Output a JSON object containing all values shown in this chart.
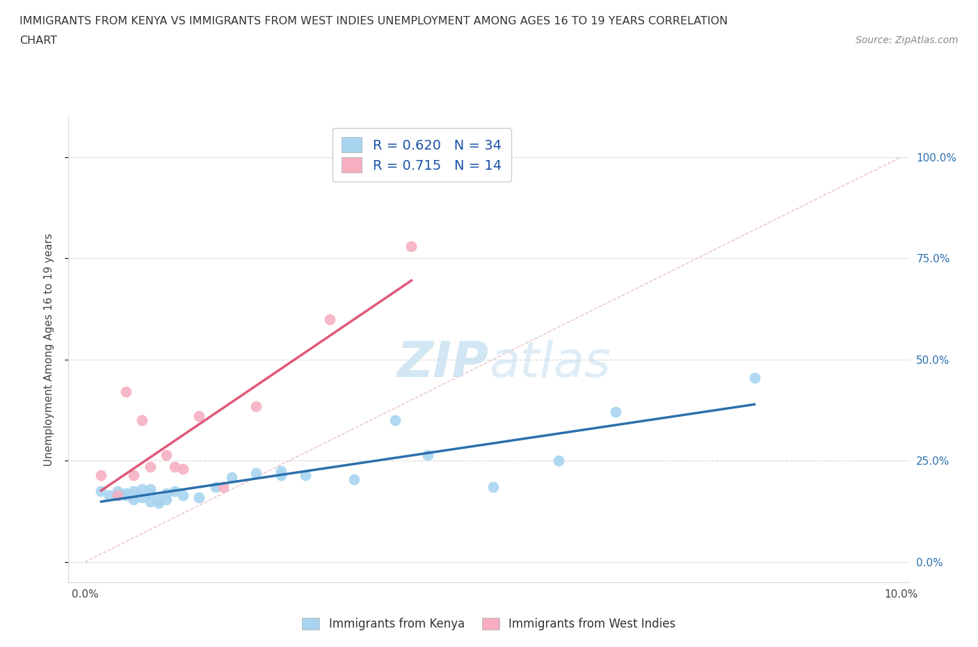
{
  "title_line1": "IMMIGRANTS FROM KENYA VS IMMIGRANTS FROM WEST INDIES UNEMPLOYMENT AMONG AGES 16 TO 19 YEARS CORRELATION",
  "title_line2": "CHART",
  "source": "Source: ZipAtlas.com",
  "ylabel": "Unemployment Among Ages 16 to 19 years",
  "xlim": [
    0.0,
    0.1
  ],
  "ylim": [
    -0.05,
    1.1
  ],
  "ytick_positions": [
    0.0,
    0.25,
    0.5,
    0.75,
    1.0
  ],
  "ytick_labels": [
    "0.0%",
    "25.0%",
    "50.0%",
    "75.0%",
    "100.0%"
  ],
  "xtick_positions": [
    0.0,
    0.02,
    0.04,
    0.06,
    0.08,
    0.1
  ],
  "xtick_labels": [
    "0.0%",
    "",
    "",
    "",
    "",
    "10.0%"
  ],
  "kenya_R": 0.62,
  "kenya_N": 34,
  "westindies_R": 0.715,
  "westindies_N": 14,
  "kenya_color": "#a8d4f0",
  "kenya_line_color": "#2c6fad",
  "westindies_color": "#f5afc0",
  "westindies_line_color": "#e05878",
  "ref_line_color": "#cccccc",
  "grid_color": "#d8d8d8",
  "watermark_color": "#c8e0f0",
  "legend_text_color": "#1a52a8",
  "right_tick_color": "#2c6fad",
  "kenya_x": [
    0.002,
    0.003,
    0.004,
    0.004,
    0.005,
    0.005,
    0.006,
    0.006,
    0.006,
    0.007,
    0.007,
    0.008,
    0.008,
    0.008,
    0.009,
    0.009,
    0.01,
    0.01,
    0.011,
    0.012,
    0.014,
    0.016,
    0.018,
    0.021,
    0.024,
    0.024,
    0.027,
    0.033,
    0.038,
    0.042,
    0.05,
    0.058,
    0.065,
    0.082
  ],
  "kenya_y": [
    0.175,
    0.165,
    0.165,
    0.175,
    0.165,
    0.17,
    0.155,
    0.165,
    0.175,
    0.16,
    0.18,
    0.15,
    0.17,
    0.18,
    0.145,
    0.155,
    0.155,
    0.17,
    0.175,
    0.165,
    0.16,
    0.185,
    0.21,
    0.22,
    0.225,
    0.215,
    0.215,
    0.205,
    0.35,
    0.265,
    0.185,
    0.25,
    0.37,
    0.455
  ],
  "westindies_x": [
    0.002,
    0.004,
    0.005,
    0.006,
    0.007,
    0.008,
    0.01,
    0.011,
    0.012,
    0.014,
    0.017,
    0.021,
    0.03,
    0.04
  ],
  "westindies_y": [
    0.215,
    0.165,
    0.42,
    0.215,
    0.35,
    0.235,
    0.265,
    0.235,
    0.23,
    0.36,
    0.185,
    0.385,
    0.6,
    0.78
  ]
}
